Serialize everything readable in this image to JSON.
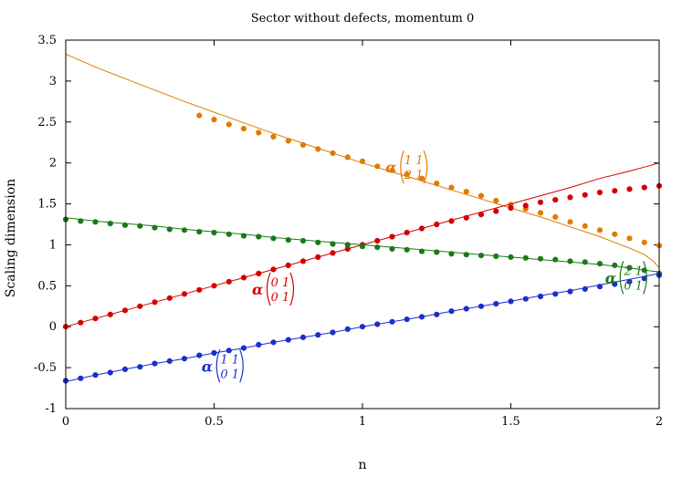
{
  "chart_data": {
    "type": "scatter",
    "title": "Sector without defects, momentum 0",
    "xlabel": "n",
    "ylabel": "Scaling dimension",
    "xlim": [
      0,
      2
    ],
    "ylim": [
      -1,
      3.5
    ],
    "xticks": [
      "0",
      "0.5",
      "1",
      "1.5",
      "2"
    ],
    "yticks": [
      "-1",
      "-0.5",
      "0",
      "0.5",
      "1",
      "1.5",
      "2",
      "2.5",
      "3",
      "3.5"
    ],
    "grid": false,
    "legend": "none",
    "series": [
      {
        "color": "#e07b00",
        "label_prefix": "α",
        "label_top": "1 1",
        "label_bottom": "2 1",
        "theory_curve": {
          "x": [
            0,
            0.1,
            0.2,
            0.3,
            0.4,
            0.5,
            0.6,
            0.7,
            0.8,
            0.9,
            1.0,
            1.1,
            1.2,
            1.3,
            1.4,
            1.5,
            1.6,
            1.7,
            1.8,
            1.85,
            1.9,
            1.95,
            1.98,
            2.0
          ],
          "y": [
            3.33,
            3.17,
            3.03,
            2.89,
            2.75,
            2.62,
            2.49,
            2.36,
            2.24,
            2.12,
            2.0,
            1.89,
            1.78,
            1.67,
            1.56,
            1.45,
            1.34,
            1.22,
            1.1,
            1.03,
            0.96,
            0.88,
            0.8,
            0.72
          ]
        },
        "points": {
          "x": [
            0.45,
            0.5,
            0.55,
            0.6,
            0.65,
            0.7,
            0.75,
            0.8,
            0.85,
            0.9,
            0.95,
            1.0,
            1.05,
            1.1,
            1.15,
            1.2,
            1.25,
            1.3,
            1.35,
            1.4,
            1.45,
            1.5,
            1.55,
            1.6,
            1.65,
            1.7,
            1.75,
            1.8,
            1.85,
            1.9,
            1.95,
            2.0
          ],
          "y": [
            2.58,
            2.53,
            2.47,
            2.42,
            2.37,
            2.32,
            2.27,
            2.22,
            2.17,
            2.12,
            2.07,
            2.02,
            1.96,
            1.91,
            1.86,
            1.81,
            1.75,
            1.7,
            1.65,
            1.6,
            1.54,
            1.49,
            1.44,
            1.39,
            1.34,
            1.28,
            1.23,
            1.18,
            1.13,
            1.08,
            1.03,
            0.99
          ]
        }
      },
      {
        "color": "#d40000",
        "label_prefix": "α",
        "label_top": "0 1",
        "label_bottom": "0 1",
        "theory_curve": {
          "x": [
            0,
            0.1,
            0.2,
            0.3,
            0.4,
            0.5,
            0.6,
            0.7,
            0.8,
            0.9,
            1.0,
            1.1,
            1.2,
            1.3,
            1.4,
            1.5,
            1.6,
            1.7,
            1.8,
            1.9,
            1.95,
            2.0
          ],
          "y": [
            0.0,
            0.1,
            0.2,
            0.3,
            0.4,
            0.5,
            0.6,
            0.7,
            0.8,
            0.9,
            1.0,
            1.1,
            1.2,
            1.3,
            1.4,
            1.5,
            1.6,
            1.7,
            1.81,
            1.9,
            1.95,
            2.0
          ]
        },
        "points": {
          "x": [
            0,
            0.05,
            0.1,
            0.15,
            0.2,
            0.25,
            0.3,
            0.35,
            0.4,
            0.45,
            0.5,
            0.55,
            0.6,
            0.65,
            0.7,
            0.75,
            0.8,
            0.85,
            0.9,
            0.95,
            1.0,
            1.05,
            1.1,
            1.15,
            1.2,
            1.25,
            1.3,
            1.35,
            1.4,
            1.45,
            1.5,
            1.55,
            1.6,
            1.65,
            1.7,
            1.75,
            1.8,
            1.85,
            1.9,
            1.95,
            2.0
          ],
          "y": [
            0.0,
            0.05,
            0.1,
            0.15,
            0.2,
            0.25,
            0.3,
            0.35,
            0.4,
            0.45,
            0.5,
            0.55,
            0.6,
            0.65,
            0.7,
            0.75,
            0.8,
            0.85,
            0.9,
            0.95,
            1.0,
            1.05,
            1.1,
            1.15,
            1.2,
            1.25,
            1.29,
            1.33,
            1.37,
            1.41,
            1.45,
            1.48,
            1.52,
            1.55,
            1.58,
            1.61,
            1.64,
            1.66,
            1.68,
            1.7,
            1.72
          ]
        }
      },
      {
        "color": "#1a7a1a",
        "label_prefix": "α",
        "label_top": "2 1",
        "label_bottom": "0 1",
        "theory_curve": {
          "x": [
            0,
            0.1,
            0.2,
            0.3,
            0.4,
            0.5,
            0.6,
            0.7,
            0.8,
            0.9,
            1.0,
            1.1,
            1.2,
            1.3,
            1.4,
            1.5,
            1.6,
            1.7,
            1.8,
            1.9,
            1.95,
            2.0
          ],
          "y": [
            1.33,
            1.29,
            1.26,
            1.23,
            1.19,
            1.16,
            1.13,
            1.09,
            1.06,
            1.03,
            1.0,
            0.97,
            0.94,
            0.91,
            0.88,
            0.85,
            0.82,
            0.79,
            0.76,
            0.72,
            0.69,
            0.67
          ]
        },
        "points": {
          "x": [
            0,
            0.05,
            0.1,
            0.15,
            0.2,
            0.25,
            0.3,
            0.35,
            0.4,
            0.45,
            0.5,
            0.55,
            0.6,
            0.65,
            0.7,
            0.75,
            0.8,
            0.85,
            0.9,
            0.95,
            1.0,
            1.05,
            1.1,
            1.15,
            1.2,
            1.25,
            1.3,
            1.35,
            1.4,
            1.45,
            1.5,
            1.55,
            1.6,
            1.65,
            1.7,
            1.75,
            1.8,
            1.85,
            1.9,
            1.95,
            2.0
          ],
          "y": [
            1.31,
            1.29,
            1.28,
            1.26,
            1.24,
            1.23,
            1.21,
            1.19,
            1.18,
            1.16,
            1.15,
            1.13,
            1.11,
            1.1,
            1.08,
            1.06,
            1.05,
            1.03,
            1.01,
            1.0,
            0.98,
            0.97,
            0.95,
            0.94,
            0.92,
            0.91,
            0.89,
            0.88,
            0.87,
            0.86,
            0.85,
            0.84,
            0.83,
            0.82,
            0.8,
            0.79,
            0.77,
            0.75,
            0.72,
            0.69,
            0.65
          ]
        }
      },
      {
        "color": "#1a2fcc",
        "label_prefix": "α",
        "label_top": "1 1",
        "label_bottom": "0 1",
        "theory_curve": {
          "x": [
            0,
            0.1,
            0.2,
            0.3,
            0.4,
            0.5,
            0.6,
            0.7,
            0.8,
            0.9,
            1.0,
            1.1,
            1.2,
            1.3,
            1.4,
            1.5,
            1.6,
            1.7,
            1.8,
            1.9,
            2.0
          ],
          "y": [
            -0.67,
            -0.59,
            -0.52,
            -0.45,
            -0.39,
            -0.32,
            -0.26,
            -0.19,
            -0.13,
            -0.07,
            0.0,
            0.06,
            0.12,
            0.19,
            0.25,
            0.31,
            0.38,
            0.44,
            0.51,
            0.58,
            0.65
          ]
        },
        "points": {
          "x": [
            0,
            0.05,
            0.1,
            0.15,
            0.2,
            0.25,
            0.3,
            0.35,
            0.4,
            0.45,
            0.5,
            0.55,
            0.6,
            0.65,
            0.7,
            0.75,
            0.8,
            0.85,
            0.9,
            0.95,
            1.0,
            1.05,
            1.1,
            1.15,
            1.2,
            1.25,
            1.3,
            1.35,
            1.4,
            1.45,
            1.5,
            1.55,
            1.6,
            1.65,
            1.7,
            1.75,
            1.8,
            1.85,
            1.9,
            1.95,
            2.0
          ],
          "y": [
            -0.66,
            -0.63,
            -0.59,
            -0.56,
            -0.52,
            -0.49,
            -0.45,
            -0.42,
            -0.39,
            -0.35,
            -0.32,
            -0.29,
            -0.26,
            -0.22,
            -0.19,
            -0.16,
            -0.13,
            -0.1,
            -0.07,
            -0.03,
            0.0,
            0.03,
            0.06,
            0.09,
            0.12,
            0.15,
            0.19,
            0.22,
            0.25,
            0.28,
            0.31,
            0.34,
            0.37,
            0.4,
            0.43,
            0.46,
            0.49,
            0.52,
            0.55,
            0.59,
            0.63
          ]
        }
      }
    ]
  }
}
